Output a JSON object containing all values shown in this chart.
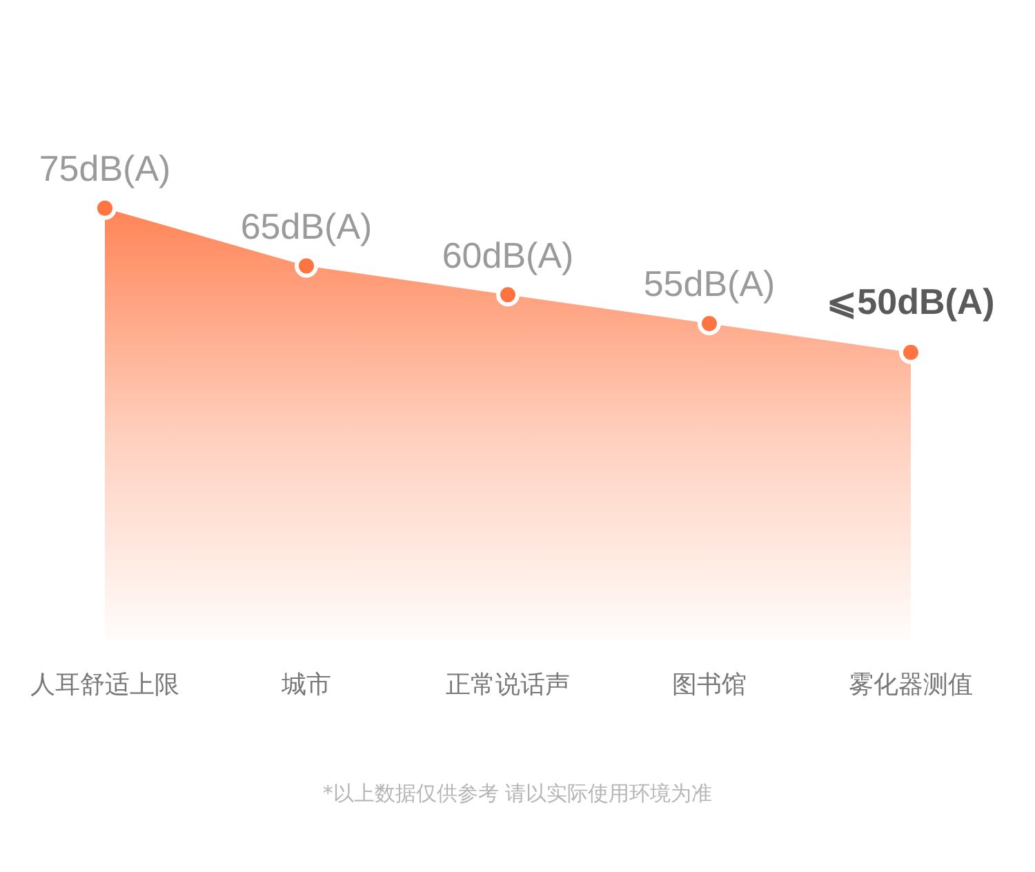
{
  "chart_data": {
    "type": "area",
    "categories": [
      "人耳舒适上限",
      "城市",
      "正常说话声",
      "图书馆",
      "雾化器测值"
    ],
    "values": [
      75,
      65,
      60,
      55,
      50
    ],
    "value_labels": [
      "75dB(A)",
      "65dB(A)",
      "60dB(A)",
      "55dB(A)",
      "⩽50dB(A)"
    ],
    "color": "#ff7440",
    "marker": "circle",
    "grid": false,
    "legend": false,
    "tick_labels": "x",
    "annotations": [
      "*以上数据仅供参考 请以实际使用环境为准"
    ]
  }
}
